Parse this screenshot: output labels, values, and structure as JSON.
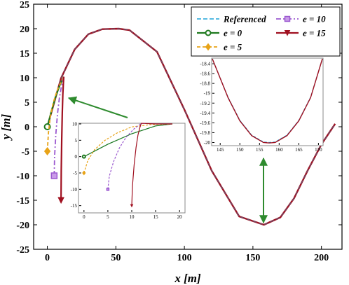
{
  "colors": {
    "referenced": "#1fa3d8",
    "e0": "#1f7a1f",
    "e5": "#e8a317",
    "e10": "#9b59d0",
    "e15": "#a01020",
    "arrow": "#2e8b2e"
  },
  "chart_data": [
    {
      "id": "main",
      "type": "line",
      "xlabel": "x [m]",
      "ylabel": "y [m]",
      "xlim": [
        -10,
        215
      ],
      "ylim": [
        -25,
        25
      ],
      "x_ticks": [
        0,
        50,
        100,
        150,
        200
      ],
      "y_ticks": [
        25,
        20,
        15,
        10,
        5,
        0,
        -5,
        -10,
        -15,
        -20,
        -25
      ],
      "grid": false,
      "legend_position": "top-right",
      "legend": [
        {
          "key": "referenced",
          "label": "Referenced"
        },
        {
          "key": "e10",
          "label": "e = 10"
        },
        {
          "key": "e0",
          "label": "e = 0"
        },
        {
          "key": "e15",
          "label": "e = 15"
        },
        {
          "key": "e5",
          "label": "e = 5"
        }
      ],
      "reference_path": {
        "x": [
          0,
          10,
          20,
          30,
          40,
          52,
          60,
          80,
          100,
          120,
          140,
          158,
          170,
          180,
          190,
          200,
          210
        ],
        "y": [
          0,
          9.9,
          15.8,
          18.9,
          19.9,
          20,
          19.7,
          15.3,
          3.5,
          -9,
          -18.3,
          -20,
          -18.5,
          -14.6,
          -8.9,
          -3.6,
          0.6
        ]
      },
      "series": [
        {
          "key": "e0",
          "x": [
            0,
            3,
            6,
            9,
            12
          ],
          "y": [
            0,
            3.2,
            6.1,
            8.4,
            10.2
          ],
          "marker_at_start": "circle"
        },
        {
          "key": "e5",
          "x": [
            0,
            0.8,
            2.2,
            4.3,
            7,
            10,
            12
          ],
          "y": [
            -5,
            -1.2,
            2.1,
            4.9,
            7.3,
            9.1,
            10.2
          ],
          "marker_at_start": "diamond"
        },
        {
          "key": "e10",
          "x": [
            5,
            5.3,
            6.2,
            7.4,
            8.8,
            10.4,
            12
          ],
          "y": [
            -10,
            -6,
            -1.5,
            2.6,
            5.9,
            8.4,
            10.2
          ],
          "marker_at_start": "square"
        },
        {
          "key": "e15",
          "x": [
            10,
            10.15,
            10.5,
            10.9,
            11.3,
            11.7,
            12
          ],
          "y": [
            -15,
            -9,
            -2.5,
            2.8,
            6.6,
            8.9,
            10.2
          ],
          "marker_at_start": "triangle"
        }
      ]
    },
    {
      "id": "inset_start",
      "type": "line",
      "xlim": [
        -1,
        21
      ],
      "ylim": [
        -17,
        10
      ],
      "x_ticks": [
        0,
        5,
        10,
        15,
        20
      ],
      "y_ticks": [
        10,
        5,
        0,
        -5,
        -10,
        -15
      ],
      "series": [
        {
          "key": "referenced",
          "x": [
            0,
            5,
            10,
            15,
            18.5
          ],
          "y": [
            0,
            3.8,
            7,
            9.4,
            10
          ]
        },
        {
          "key": "e0",
          "x": [
            0,
            5,
            10,
            15,
            18.5
          ],
          "y": [
            0,
            3.8,
            7,
            9.4,
            10
          ]
        },
        {
          "key": "e5",
          "x": [
            0,
            0.8,
            2.2,
            4.3,
            7,
            10,
            14,
            18.5
          ],
          "y": [
            -5,
            -1.2,
            2.1,
            4.9,
            7.3,
            9.1,
            9.8,
            10
          ]
        },
        {
          "key": "e10",
          "x": [
            5,
            5.3,
            6.2,
            7.4,
            8.8,
            10.4,
            12,
            15,
            18.5
          ],
          "y": [
            -10,
            -6,
            -1.5,
            2.6,
            5.9,
            8.4,
            10.2,
            10,
            10
          ]
        },
        {
          "key": "e15",
          "x": [
            10,
            10.15,
            10.5,
            10.9,
            11.3,
            11.7,
            12,
            15,
            18.5
          ],
          "y": [
            -15,
            -9,
            -2.5,
            2.8,
            6.6,
            8.9,
            10.2,
            10,
            10
          ]
        }
      ]
    },
    {
      "id": "inset_valley",
      "type": "line",
      "xlim": [
        143,
        171
      ],
      "ylim": [
        -20.05,
        -18.3
      ],
      "x_ticks": [
        145,
        150,
        155,
        160,
        165,
        170
      ],
      "y_ticks": [
        -18.4,
        -18.6,
        -18.8,
        -19,
        -19.2,
        -19.4,
        -19.6,
        -19.8,
        -20
      ],
      "x_tick_labels": [
        "145",
        "150",
        "155",
        "160",
        "165",
        "170"
      ],
      "y_tick_labels": [
        "-18.4",
        "-18.6",
        "-18.8",
        "-19",
        "-19.2",
        "-19.4",
        "-19.6",
        "-19.8",
        "-20"
      ],
      "series": [
        {
          "key": "referenced",
          "x": [
            143,
            147,
            150,
            153,
            156,
            157.5,
            159,
            162,
            165,
            168,
            171
          ],
          "y": [
            -18.3,
            -19.08,
            -19.55,
            -19.85,
            -19.99,
            -20,
            -19.99,
            -19.85,
            -19.55,
            -19.08,
            -18.3
          ]
        },
        {
          "key": "e15",
          "x": [
            143,
            147,
            150,
            153,
            156,
            157.5,
            159,
            162,
            165,
            168,
            171
          ],
          "y": [
            -18.3,
            -19.09,
            -19.56,
            -19.86,
            -20,
            -20.01,
            -20,
            -19.86,
            -19.56,
            -19.09,
            -18.3
          ]
        }
      ]
    }
  ]
}
